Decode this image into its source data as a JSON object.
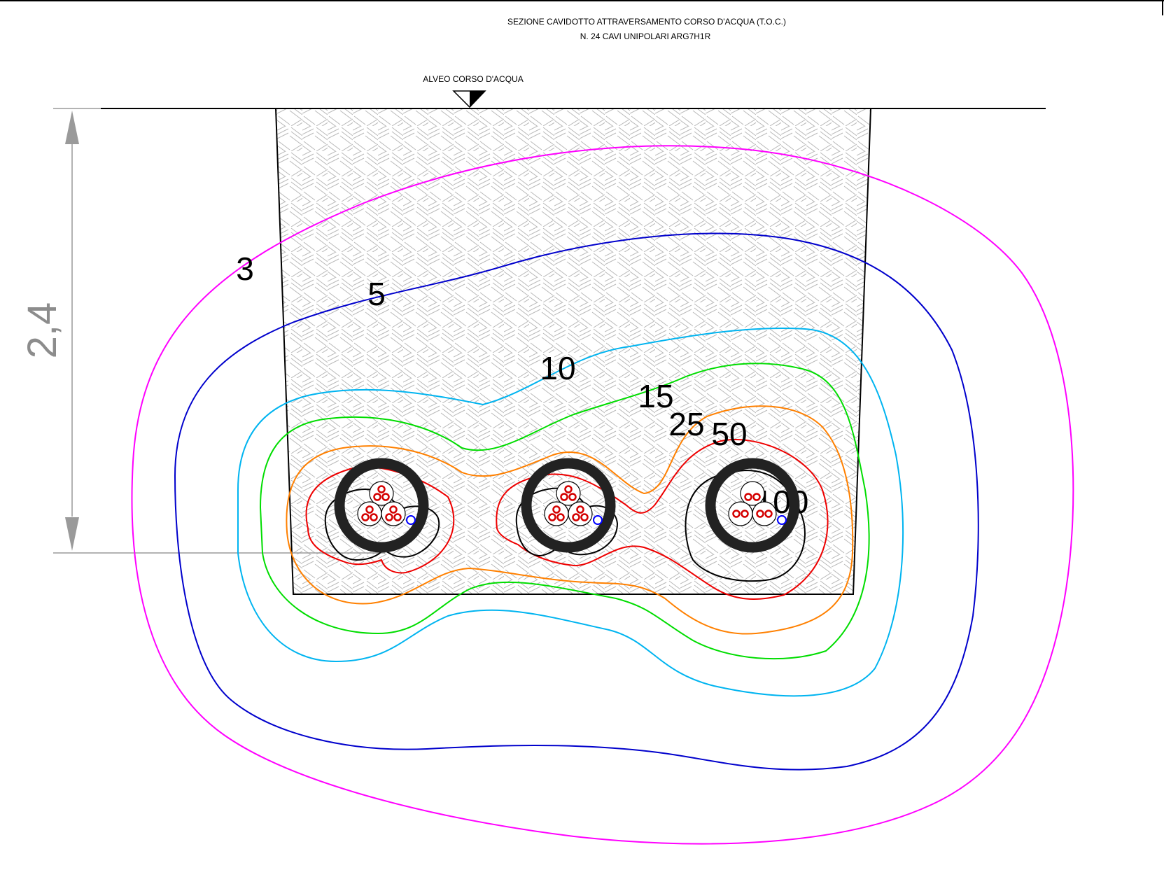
{
  "title": {
    "line1": "SEZIONE CAVIDOTTO ATTRAVERSAMENTO CORSO D'ACQUA (T.O.C.)",
    "line2": "N. 24 CAVI UNIPOLARI ARG7H1R"
  },
  "riverbed_label": "ALVEO CORSO D'ACQUA",
  "depth_dimension": "2,4",
  "contours": [
    {
      "label": "3",
      "color": "#ff00ff"
    },
    {
      "label": "5",
      "color": "#0000cc"
    },
    {
      "label": "10",
      "color": "#00b4f0"
    },
    {
      "label": "15",
      "color": "#00dd00"
    },
    {
      "label": "25",
      "color": "#ff8000"
    },
    {
      "label": "50",
      "color": "#ee0000"
    },
    {
      "label": "100",
      "color": "#000000"
    }
  ],
  "conduits": 3,
  "colors": {
    "dimension": "#9a9a9a",
    "hatch": "#b8b8b8",
    "conduit": "#222222",
    "conductor": "#d40000",
    "fiber": "#0000ff"
  }
}
